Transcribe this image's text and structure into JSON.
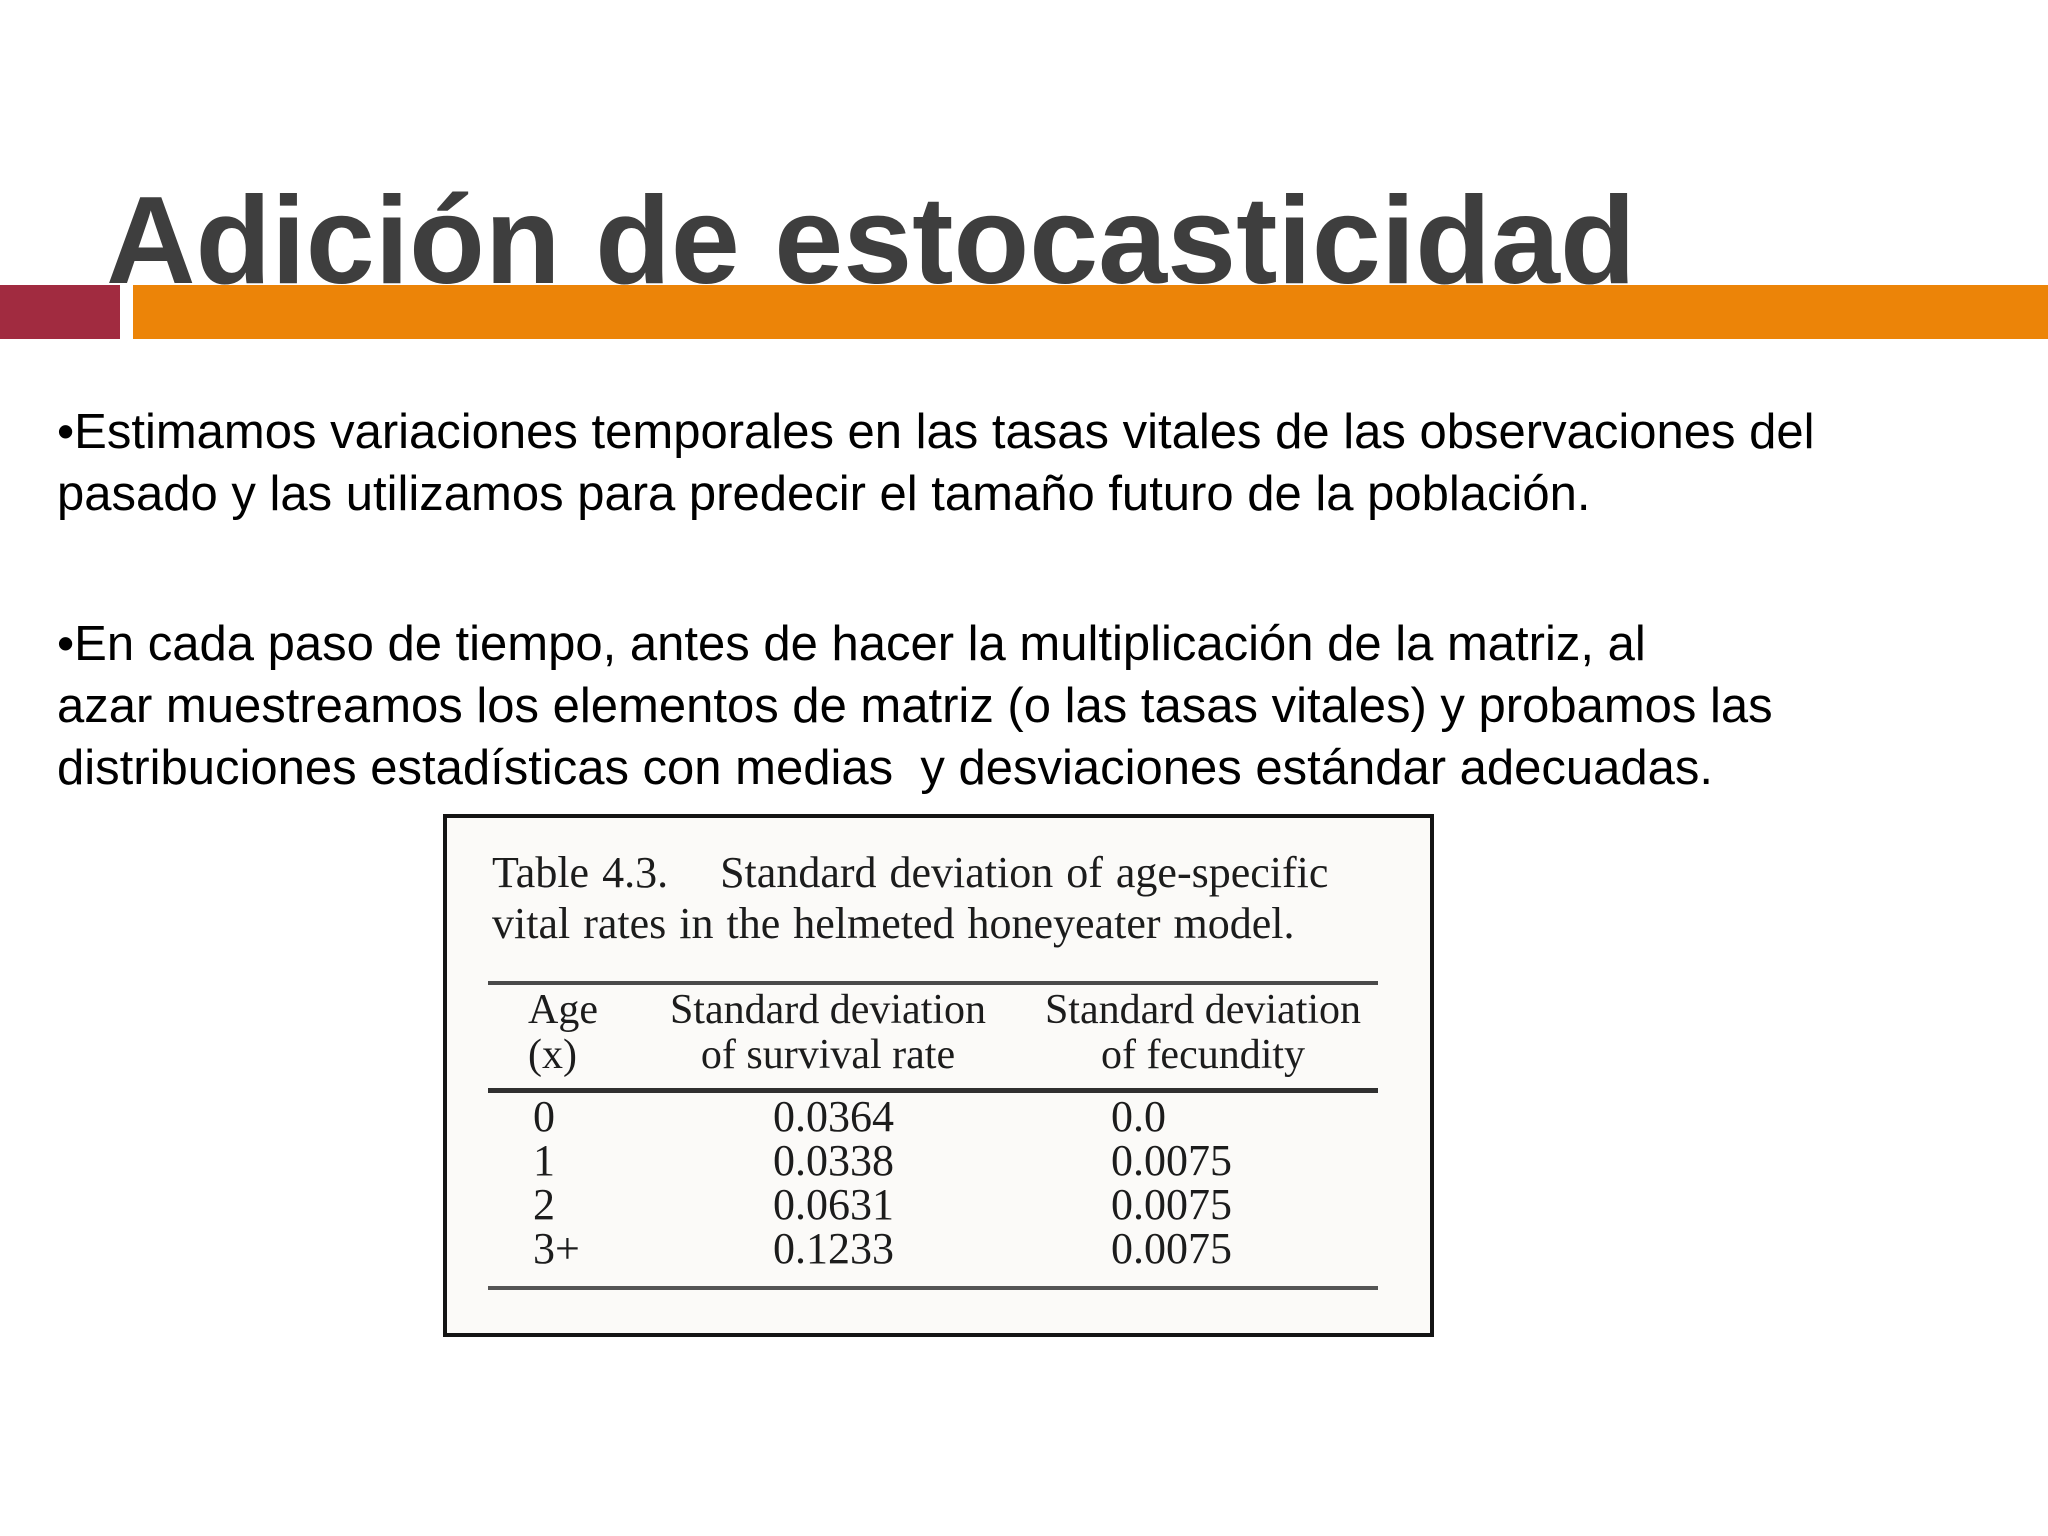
{
  "slide": {
    "title": "Adición de estocasticidad",
    "bullet1": "•Estimamos variaciones temporales en las tasas vitales de las observaciones del\npasado y las utilizamos para predecir el tamaño futuro de la población.",
    "bullet2": "•En cada paso de tiempo, antes de hacer la multiplicación de la matriz, al\nazar muestreamos los elementos de matriz (o las tasas vitales) y probamos las\ndistribuciones estadísticas con medias  y desviaciones estándar adecuadas.",
    "accent": {
      "maroon": "#A12B40",
      "orange": "#EC8408"
    }
  },
  "table_figure": {
    "caption": "Table 4.3.    Standard deviation of age-specific\nvital rates in the helmeted honeyeater model.",
    "col_headers": [
      "Age\n(x)",
      "Standard deviation\nof survival rate",
      "Standard deviation\nof fecundity"
    ],
    "rows": [
      [
        "0",
        "0.0364",
        "0.0"
      ],
      [
        "1",
        "0.0338",
        "0.0075"
      ],
      [
        "2",
        "0.0631",
        "0.0075"
      ],
      [
        "3+",
        "0.1233",
        "0.0075"
      ]
    ]
  }
}
